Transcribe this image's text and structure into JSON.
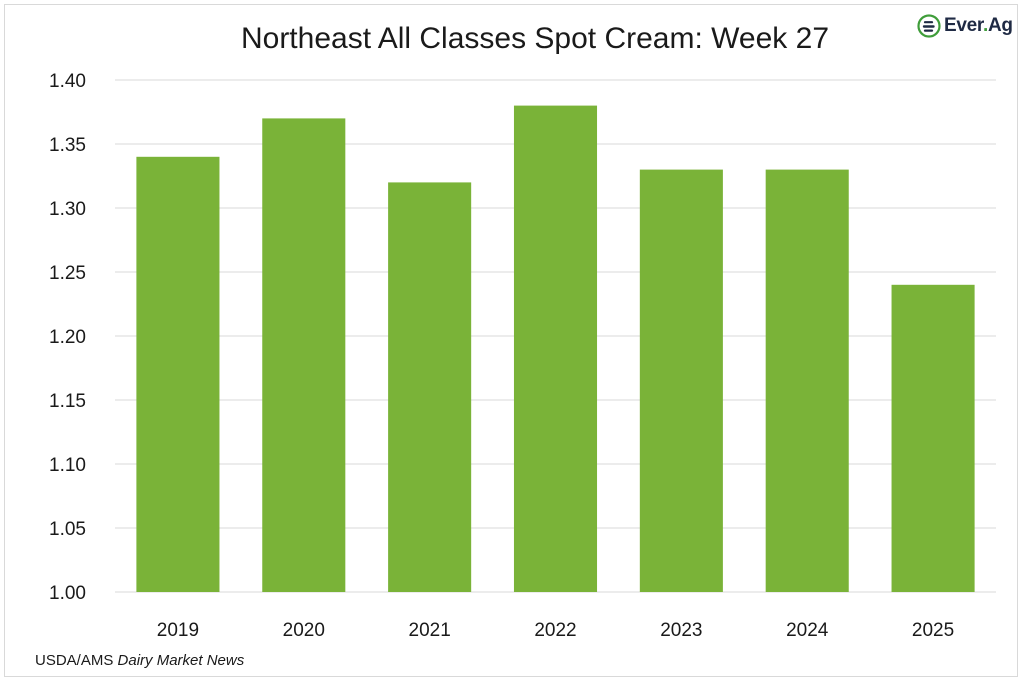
{
  "chart_data": {
    "type": "bar",
    "title": "Northeast All Classes Spot Cream: Week 27",
    "xlabel": "",
    "ylabel": "",
    "categories": [
      "2019",
      "2020",
      "2021",
      "2022",
      "2023",
      "2024",
      "2025"
    ],
    "values": [
      1.34,
      1.37,
      1.32,
      1.38,
      1.33,
      1.33,
      1.24
    ],
    "ylim": [
      1.0,
      1.4
    ],
    "yticks": [
      "1.00",
      "1.05",
      "1.10",
      "1.15",
      "1.20",
      "1.25",
      "1.30",
      "1.35",
      "1.40"
    ],
    "grid": true,
    "legend": "none",
    "bar_color": "#7ab338",
    "grid_color": "#d9d9d9"
  },
  "source": {
    "prefix": "USDA/AMS",
    "italic": "Dairy Market News"
  },
  "logo": {
    "text_main": "Ever",
    "text_dot": ".",
    "text_end": "Ag",
    "icon": "ever-ag-logo-icon"
  }
}
